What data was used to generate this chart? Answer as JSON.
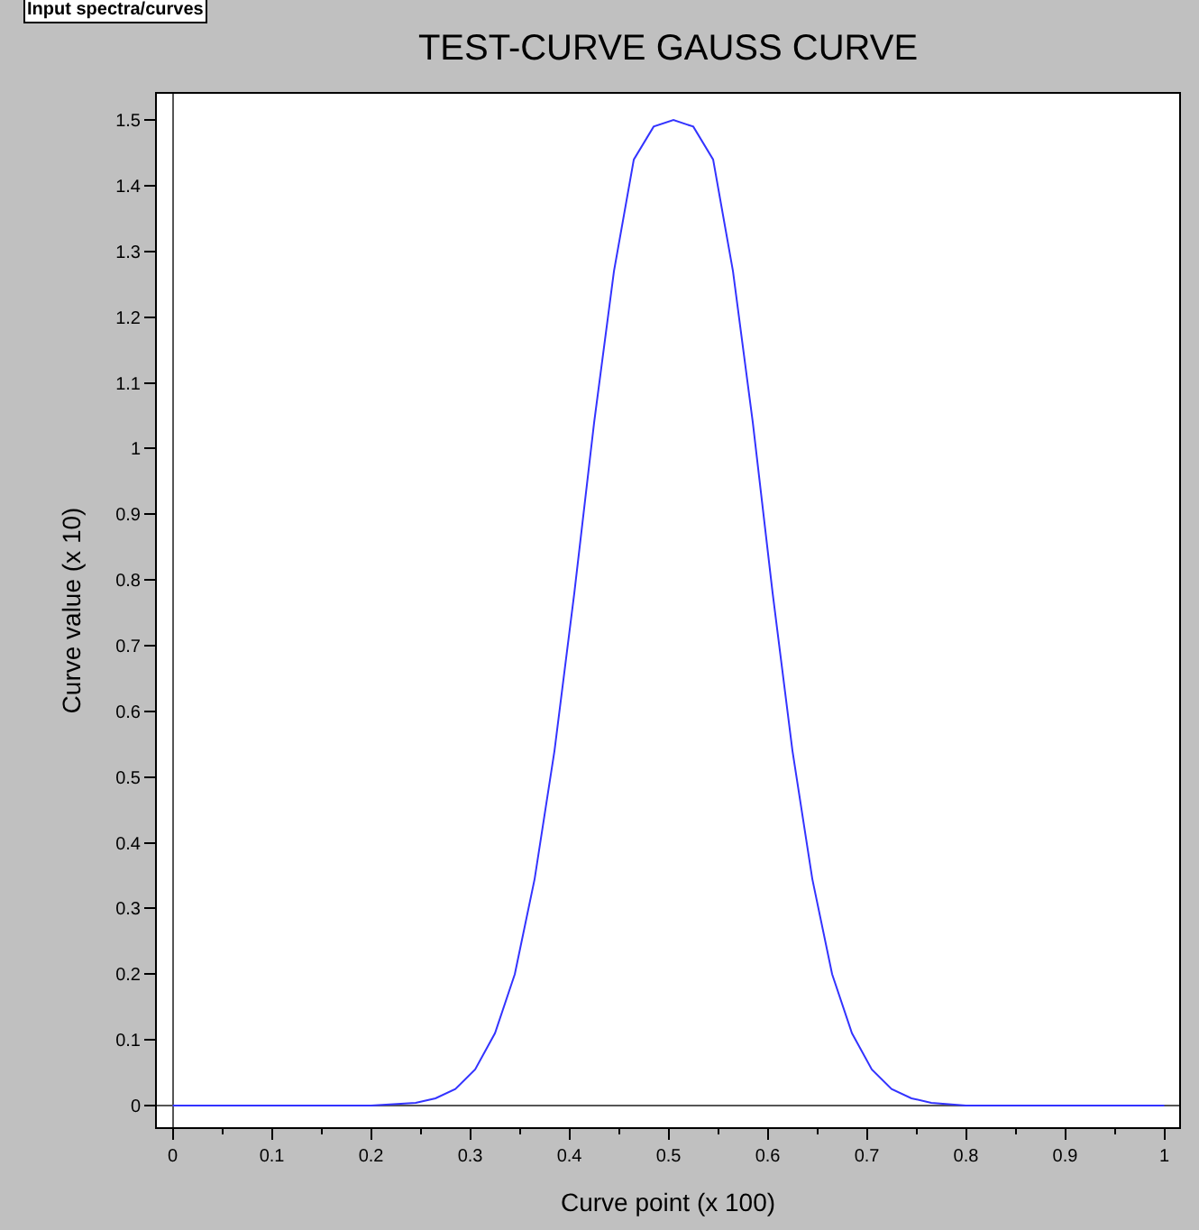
{
  "chart_data": {
    "type": "line",
    "title": "TEST-CURVE GAUSS CURVE",
    "xlabel": "Curve point (x 100)",
    "ylabel": "Curve value (x 10)",
    "annotations": [
      "Input spectra/curves"
    ],
    "x": [
      0,
      0.2,
      0.245,
      0.265,
      0.285,
      0.305,
      0.325,
      0.345,
      0.365,
      0.385,
      0.405,
      0.425,
      0.445,
      0.465,
      0.485,
      0.505,
      0.525,
      0.545,
      0.565,
      0.585,
      0.605,
      0.625,
      0.645,
      0.665,
      0.685,
      0.705,
      0.725,
      0.745,
      0.765,
      0.8,
      1
    ],
    "series": [
      {
        "color": "#3333ff",
        "values": [
          0,
          0,
          0.004,
          0.011,
          0.025,
          0.055,
          0.11,
          0.2,
          0.345,
          0.54,
          0.78,
          1.04,
          1.27,
          1.44,
          1.49,
          1.5,
          1.49,
          1.44,
          1.27,
          1.04,
          0.78,
          0.54,
          0.345,
          0.2,
          0.11,
          0.055,
          0.025,
          0.011,
          0.004,
          0,
          0
        ]
      }
    ],
    "xlim": [
      -0.016,
      1.015
    ],
    "ylim": [
      -0.033,
      1.54
    ],
    "xticks": [
      0,
      0.1,
      0.2,
      0.3,
      0.4,
      0.5,
      0.6,
      0.7,
      0.8,
      0.9,
      1
    ],
    "yticks": [
      0,
      0.1,
      0.2,
      0.3,
      0.4,
      0.5,
      0.6,
      0.7,
      0.8,
      0.9,
      1,
      1.1,
      1.2,
      1.3,
      1.4,
      1.5
    ],
    "legend": false,
    "marker": "none",
    "line_style": "solid"
  }
}
